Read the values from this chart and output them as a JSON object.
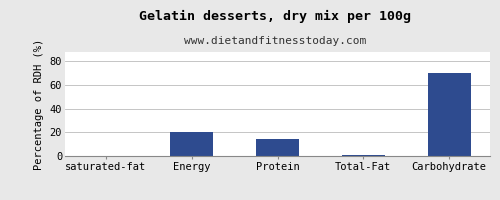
{
  "title": "Gelatin desserts, dry mix per 100g",
  "subtitle": "www.dietandfitnesstoday.com",
  "categories": [
    "saturated-fat",
    "Energy",
    "Protein",
    "Total-Fat",
    "Carbohydrate"
  ],
  "values": [
    0,
    20,
    14,
    0.5,
    70
  ],
  "bar_color": "#2e4b8f",
  "ylabel": "Percentage of RDH (%)",
  "ylim": [
    0,
    88
  ],
  "yticks": [
    0,
    20,
    40,
    60,
    80
  ],
  "background_color": "#e8e8e8",
  "plot_bg_color": "#ffffff",
  "title_fontsize": 9.5,
  "subtitle_fontsize": 8,
  "tick_fontsize": 7.5,
  "ylabel_fontsize": 7.5
}
